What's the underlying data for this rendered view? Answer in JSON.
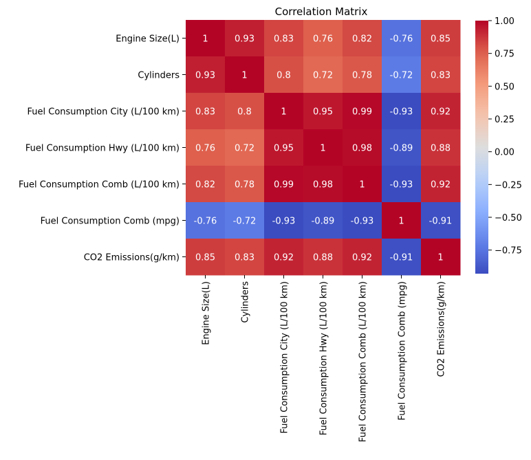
{
  "chart_data": {
    "type": "heatmap",
    "title": "Correlation Matrix",
    "xlabel": "",
    "ylabel": "",
    "colormap": "coolwarm",
    "rows": [
      "Engine Size(L)",
      "Cylinders",
      "Fuel Consumption City (L/100 km)",
      "Fuel Consumption Hwy (L/100 km)",
      "Fuel Consumption Comb (L/100 km)",
      "Fuel Consumption Comb (mpg)",
      "CO2 Emissions(g/km)"
    ],
    "columns": [
      "Engine Size(L)",
      "Cylinders",
      "Fuel Consumption City (L/100 km)",
      "Fuel Consumption Hwy (L/100 km)",
      "Fuel Consumption Comb (L/100 km)",
      "Fuel Consumption Comb (mpg)",
      "CO2 Emissions(g/km)"
    ],
    "values": [
      [
        1,
        0.93,
        0.83,
        0.76,
        0.82,
        -0.76,
        0.85
      ],
      [
        0.93,
        1,
        0.8,
        0.72,
        0.78,
        -0.72,
        0.83
      ],
      [
        0.83,
        0.8,
        1,
        0.95,
        0.99,
        -0.93,
        0.92
      ],
      [
        0.76,
        0.72,
        0.95,
        1,
        0.98,
        -0.89,
        0.88
      ],
      [
        0.82,
        0.78,
        0.99,
        0.98,
        1,
        -0.93,
        0.92
      ],
      [
        -0.76,
        -0.72,
        -0.93,
        -0.89,
        -0.93,
        1,
        -0.91
      ],
      [
        0.85,
        0.83,
        0.92,
        0.88,
        0.92,
        -0.91,
        1
      ]
    ],
    "labels": [
      [
        "1",
        "0.93",
        "0.83",
        "0.76",
        "0.82",
        "-0.76",
        "0.85"
      ],
      [
        "0.93",
        "1",
        "0.8",
        "0.72",
        "0.78",
        "-0.72",
        "0.83"
      ],
      [
        "0.83",
        "0.8",
        "1",
        "0.95",
        "0.99",
        "-0.93",
        "0.92"
      ],
      [
        "0.76",
        "0.72",
        "0.95",
        "1",
        "0.98",
        "-0.89",
        "0.88"
      ],
      [
        "0.82",
        "0.78",
        "0.99",
        "0.98",
        "1",
        "-0.93",
        "0.92"
      ],
      [
        "-0.76",
        "-0.72",
        "-0.93",
        "-0.89",
        "-0.93",
        "1",
        "-0.91"
      ],
      [
        "0.85",
        "0.83",
        "0.92",
        "0.88",
        "0.92",
        "-0.91",
        "1"
      ]
    ],
    "colorbar": {
      "vmin": -0.93,
      "vmax": 1,
      "ticks": [
        1,
        0.75,
        0.5,
        0.25,
        0,
        -0.25,
        -0.5,
        -0.75
      ],
      "tick_labels": [
        "1.00",
        "0.75",
        "0.50",
        "0.25",
        "0.00",
        "−0.25",
        "−0.50",
        "−0.75"
      ]
    }
  }
}
